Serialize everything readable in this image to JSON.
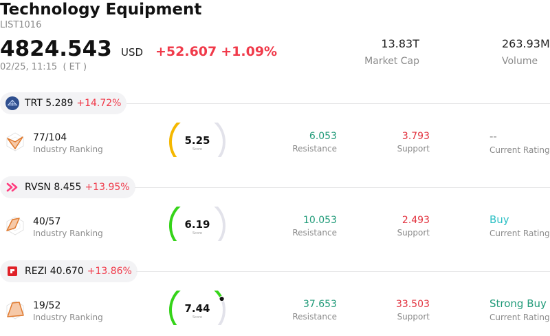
{
  "header": {
    "title": "Technology Equipment",
    "code": "LIST1016",
    "price": "4824.543",
    "currency": "USD",
    "change_abs": "+52.607",
    "change_pct": "+1.09%",
    "timestamp": "02/25, 11:15  ( ET )",
    "market_cap_value": "13.83T",
    "market_cap_label": "Market Cap",
    "volume_value": "263.93M",
    "volume_label": "Volume"
  },
  "colors": {
    "positive_change": "#f03a4a",
    "resistance": "#1f9a78",
    "support": "#e2333f",
    "rating_buy": "#2bbfc4",
    "rating_strong_buy": "#1f9a78",
    "rating_none": "#8a8a8a"
  },
  "stocks": [
    {
      "ticker": "TRT",
      "price": "5.289",
      "change": "+14.72%",
      "logo_icon": "trt-logo-icon",
      "ranking_value": "77/104",
      "ranking_label": "Industry Ranking",
      "score": "5.25",
      "score_value": 5.25,
      "score_label": "Score",
      "resistance_value": "6.053",
      "resistance_label": "Resistance",
      "support_value": "3.793",
      "support_label": "Support",
      "rating_value": "--",
      "rating_label": "Current Rating"
    },
    {
      "ticker": "RVSN",
      "price": "8.455",
      "change": "+13.95%",
      "logo_icon": "rvsn-logo-icon",
      "ranking_value": "40/57",
      "ranking_label": "Industry Ranking",
      "score": "6.19",
      "score_value": 6.19,
      "score_label": "Score",
      "resistance_value": "10.053",
      "resistance_label": "Resistance",
      "support_value": "2.493",
      "support_label": "Support",
      "rating_value": "Buy",
      "rating_label": "Current Rating"
    },
    {
      "ticker": "REZI",
      "price": "40.670",
      "change": "+13.86%",
      "logo_icon": "rezi-logo-icon",
      "ranking_value": "19/52",
      "ranking_label": "Industry Ranking",
      "score": "7.44",
      "score_value": 7.44,
      "score_label": "Score",
      "resistance_value": "37.653",
      "resistance_label": "Resistance",
      "support_value": "33.503",
      "support_label": "Support",
      "rating_value": "Strong Buy",
      "rating_label": "Current Rating"
    }
  ]
}
